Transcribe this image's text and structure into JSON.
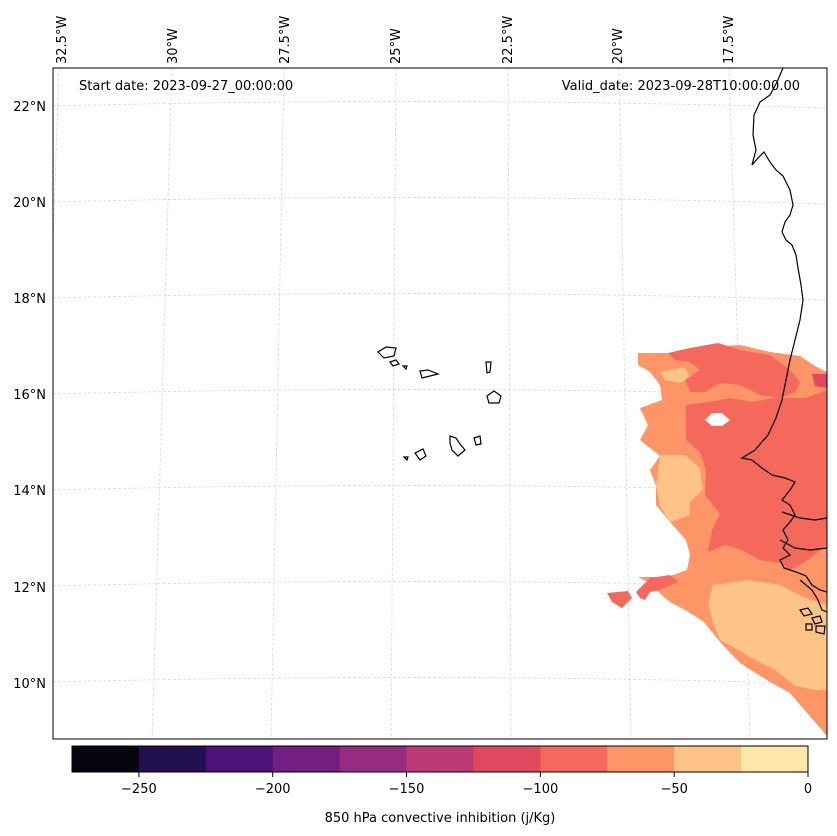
{
  "map": {
    "start_date_label": "Start date: 2023-09-27_00:00:00",
    "valid_date_label": "Valid_date: 2023-09-28T10:00:00.00",
    "lon_labels": [
      "32.5°W",
      "30°W",
      "27.5°W",
      "25°W",
      "22.5°W",
      "20°W",
      "17.5°W"
    ],
    "lat_labels": [
      "22°N",
      "20°N",
      "18°N",
      "16°N",
      "14°N",
      "12°N",
      "10°N"
    ]
  },
  "colorbar": {
    "label": "850 hPa convective inhibition (j/Kg)",
    "tick_labels": [
      "−250",
      "−200",
      "−150",
      "−100",
      "−50",
      "0"
    ],
    "colors": [
      "#05040f",
      "#221150",
      "#4d117b",
      "#711f81",
      "#962c80",
      "#bc3a75",
      "#e0485f",
      "#f4695c",
      "#fd9567",
      "#fec387",
      "#fde7a9"
    ]
  },
  "field_colors": {
    "range_-75_-50": "#fd9567",
    "range_-50_-25": "#fec387",
    "range_-100_-75": "#f4695c",
    "range_-125_-100": "#e0485f"
  }
}
